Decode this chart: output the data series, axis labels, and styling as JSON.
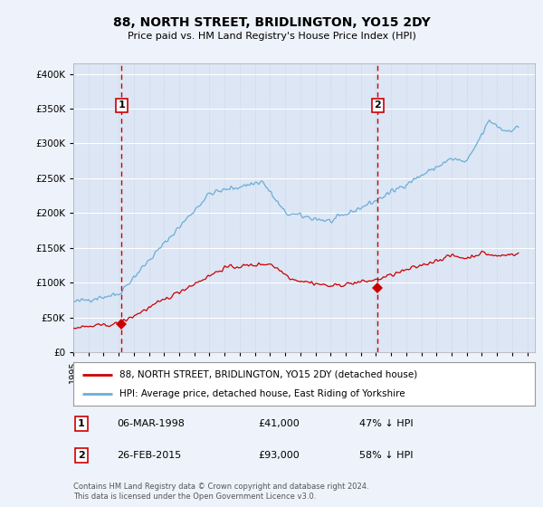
{
  "title": "88, NORTH STREET, BRIDLINGTON, YO15 2DY",
  "subtitle": "Price paid vs. HM Land Registry's House Price Index (HPI)",
  "ytick_values": [
    0,
    50000,
    100000,
    150000,
    200000,
    250000,
    300000,
    350000,
    400000
  ],
  "ylim": [
    0,
    415000
  ],
  "xlim_start": 1995.0,
  "xlim_end": 2025.5,
  "background_color": "#eef2fa",
  "plot_bg_color": "#dce6f5",
  "grid_color": "#ffffff",
  "hpi_color": "#6baed6",
  "price_color": "#cc0000",
  "sale1_x": 1998.18,
  "sale1_y": 41000,
  "sale2_x": 2015.12,
  "sale2_y": 93000,
  "sale1_label": "1",
  "sale2_label": "2",
  "legend_line1": "88, NORTH STREET, BRIDLINGTON, YO15 2DY (detached house)",
  "legend_line2": "HPI: Average price, detached house, East Riding of Yorkshire",
  "annotation1_date": "06-MAR-1998",
  "annotation1_price": "£41,000",
  "annotation1_pct": "47% ↓ HPI",
  "annotation2_date": "26-FEB-2015",
  "annotation2_price": "£93,000",
  "annotation2_pct": "58% ↓ HPI",
  "footer": "Contains HM Land Registry data © Crown copyright and database right 2024.\nThis data is licensed under the Open Government Licence v3.0.",
  "xtick_years": [
    1995,
    1996,
    1997,
    1998,
    1999,
    2000,
    2001,
    2002,
    2003,
    2004,
    2005,
    2006,
    2007,
    2008,
    2009,
    2010,
    2011,
    2012,
    2013,
    2014,
    2015,
    2016,
    2017,
    2018,
    2019,
    2020,
    2021,
    2022,
    2023,
    2024,
    2025
  ]
}
